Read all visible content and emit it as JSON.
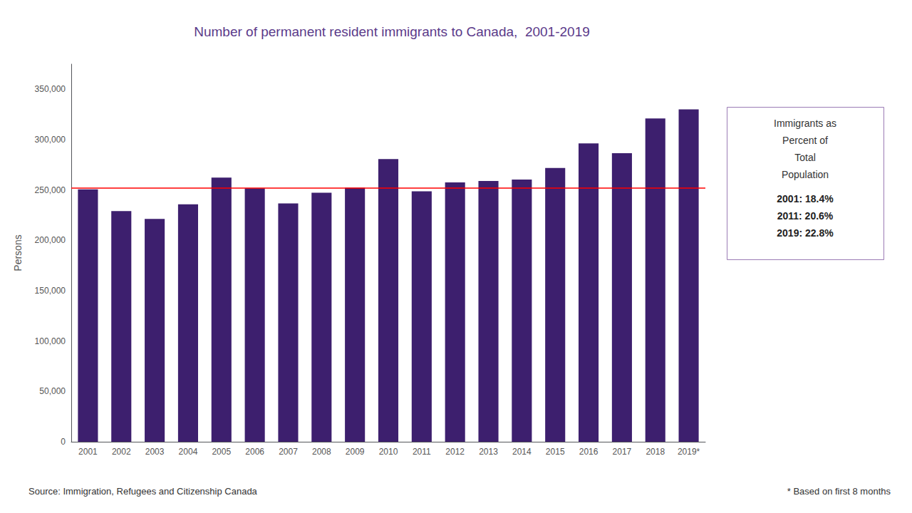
{
  "chart_data": {
    "type": "bar",
    "title": "Number of permanent resident immigrants to Canada,  2001-2019",
    "categories": [
      "2001",
      "2002",
      "2003",
      "2004",
      "2005",
      "2006",
      "2007",
      "2008",
      "2009",
      "2010",
      "2011",
      "2012",
      "2013",
      "2014",
      "2015",
      "2016",
      "2017",
      "2018",
      "2019*"
    ],
    "values": [
      250640,
      229091,
      221352,
      235824,
      262236,
      251649,
      236758,
      247243,
      252179,
      280681,
      248748,
      257515,
      258953,
      260411,
      271845,
      296346,
      286479,
      321065,
      330000
    ],
    "color": "#3d1f6e",
    "ylabel": "Persons",
    "ylim": [
      0,
      375000
    ],
    "yticks": [
      0,
      {
        "value": 50000,
        "label": "50,000"
      },
      {
        "value": 100000,
        "label": "100,000"
      },
      {
        "value": 150000,
        "label": "150,000"
      },
      {
        "value": 200000,
        "label": "200,000"
      },
      {
        "value": 250000,
        "label": "250,000"
      },
      {
        "value": 300000,
        "label": "300,000"
      },
      {
        "value": 350000,
        "label": "350,000"
      }
    ],
    "grid": false,
    "reference_line": {
      "value": 252000,
      "color": "red"
    },
    "box_title_lines": [
      "Immigrants as",
      "Percent of",
      "Total",
      "Population"
    ],
    "box_lines": [
      "2001: 18.4%",
      "2011: 20.6%",
      "2019: 22.8%"
    ],
    "source": "Source: Immigration, Refugees and Citizenship Canada",
    "note": "* Based on first 8 months"
  }
}
